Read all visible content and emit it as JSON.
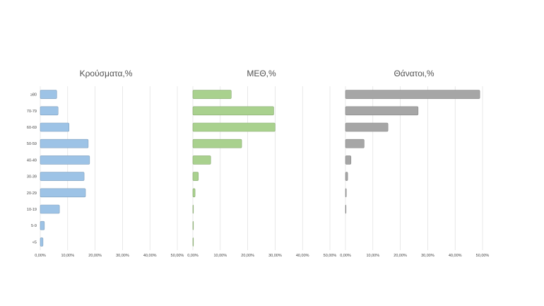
{
  "chart_data": [
    {
      "type": "bar",
      "orientation": "horizontal",
      "title": "Κρούσματα,%",
      "categories": [
        "≥80",
        "70-79",
        "60-69",
        "50-59",
        "40-49",
        "30-39",
        "20-29",
        "10-19",
        "5-9",
        "<5"
      ],
      "values": [
        6.0,
        6.5,
        10.5,
        17.5,
        18.0,
        16.0,
        16.5,
        7.0,
        1.5,
        1.0
      ],
      "xlim": [
        0,
        50
      ],
      "x_ticks": [
        "0,00%",
        "10,00%",
        "20,00%",
        "30,00%",
        "40,00%",
        "50,00%"
      ],
      "color": "#9dc3e6",
      "grid": true
    },
    {
      "type": "bar",
      "orientation": "horizontal",
      "title": "ΜΕΘ,%",
      "categories": [
        "≥80",
        "70-79",
        "60-69",
        "50-59",
        "40-49",
        "30-39",
        "20-29",
        "10-19",
        "5-9",
        "<5"
      ],
      "values": [
        14.0,
        29.5,
        30.0,
        17.8,
        6.5,
        2.0,
        0.8,
        0.2,
        0.2,
        0.2
      ],
      "xlim": [
        0,
        50
      ],
      "x_ticks": [
        "0,00%",
        "10,00%",
        "20,00%",
        "30,00%",
        "40,00%",
        "50,00%"
      ],
      "color": "#a9d18e",
      "grid": true
    },
    {
      "type": "bar",
      "orientation": "horizontal",
      "title": "Θάνατοι,%",
      "categories": [
        "≥80",
        "70-79",
        "60-69",
        "50-59",
        "40-49",
        "30-39",
        "20-29",
        "10-19",
        "5-9",
        "<5"
      ],
      "values": [
        49.0,
        26.5,
        15.5,
        6.8,
        2.0,
        0.8,
        0.3,
        0.2,
        0,
        0
      ],
      "xlim": [
        0,
        50
      ],
      "x_ticks": [
        "0,00%",
        "10,00%",
        "20,00%",
        "30,00%",
        "40,00%",
        "50,00%"
      ],
      "color": "#a6a6a6",
      "grid": true
    }
  ]
}
